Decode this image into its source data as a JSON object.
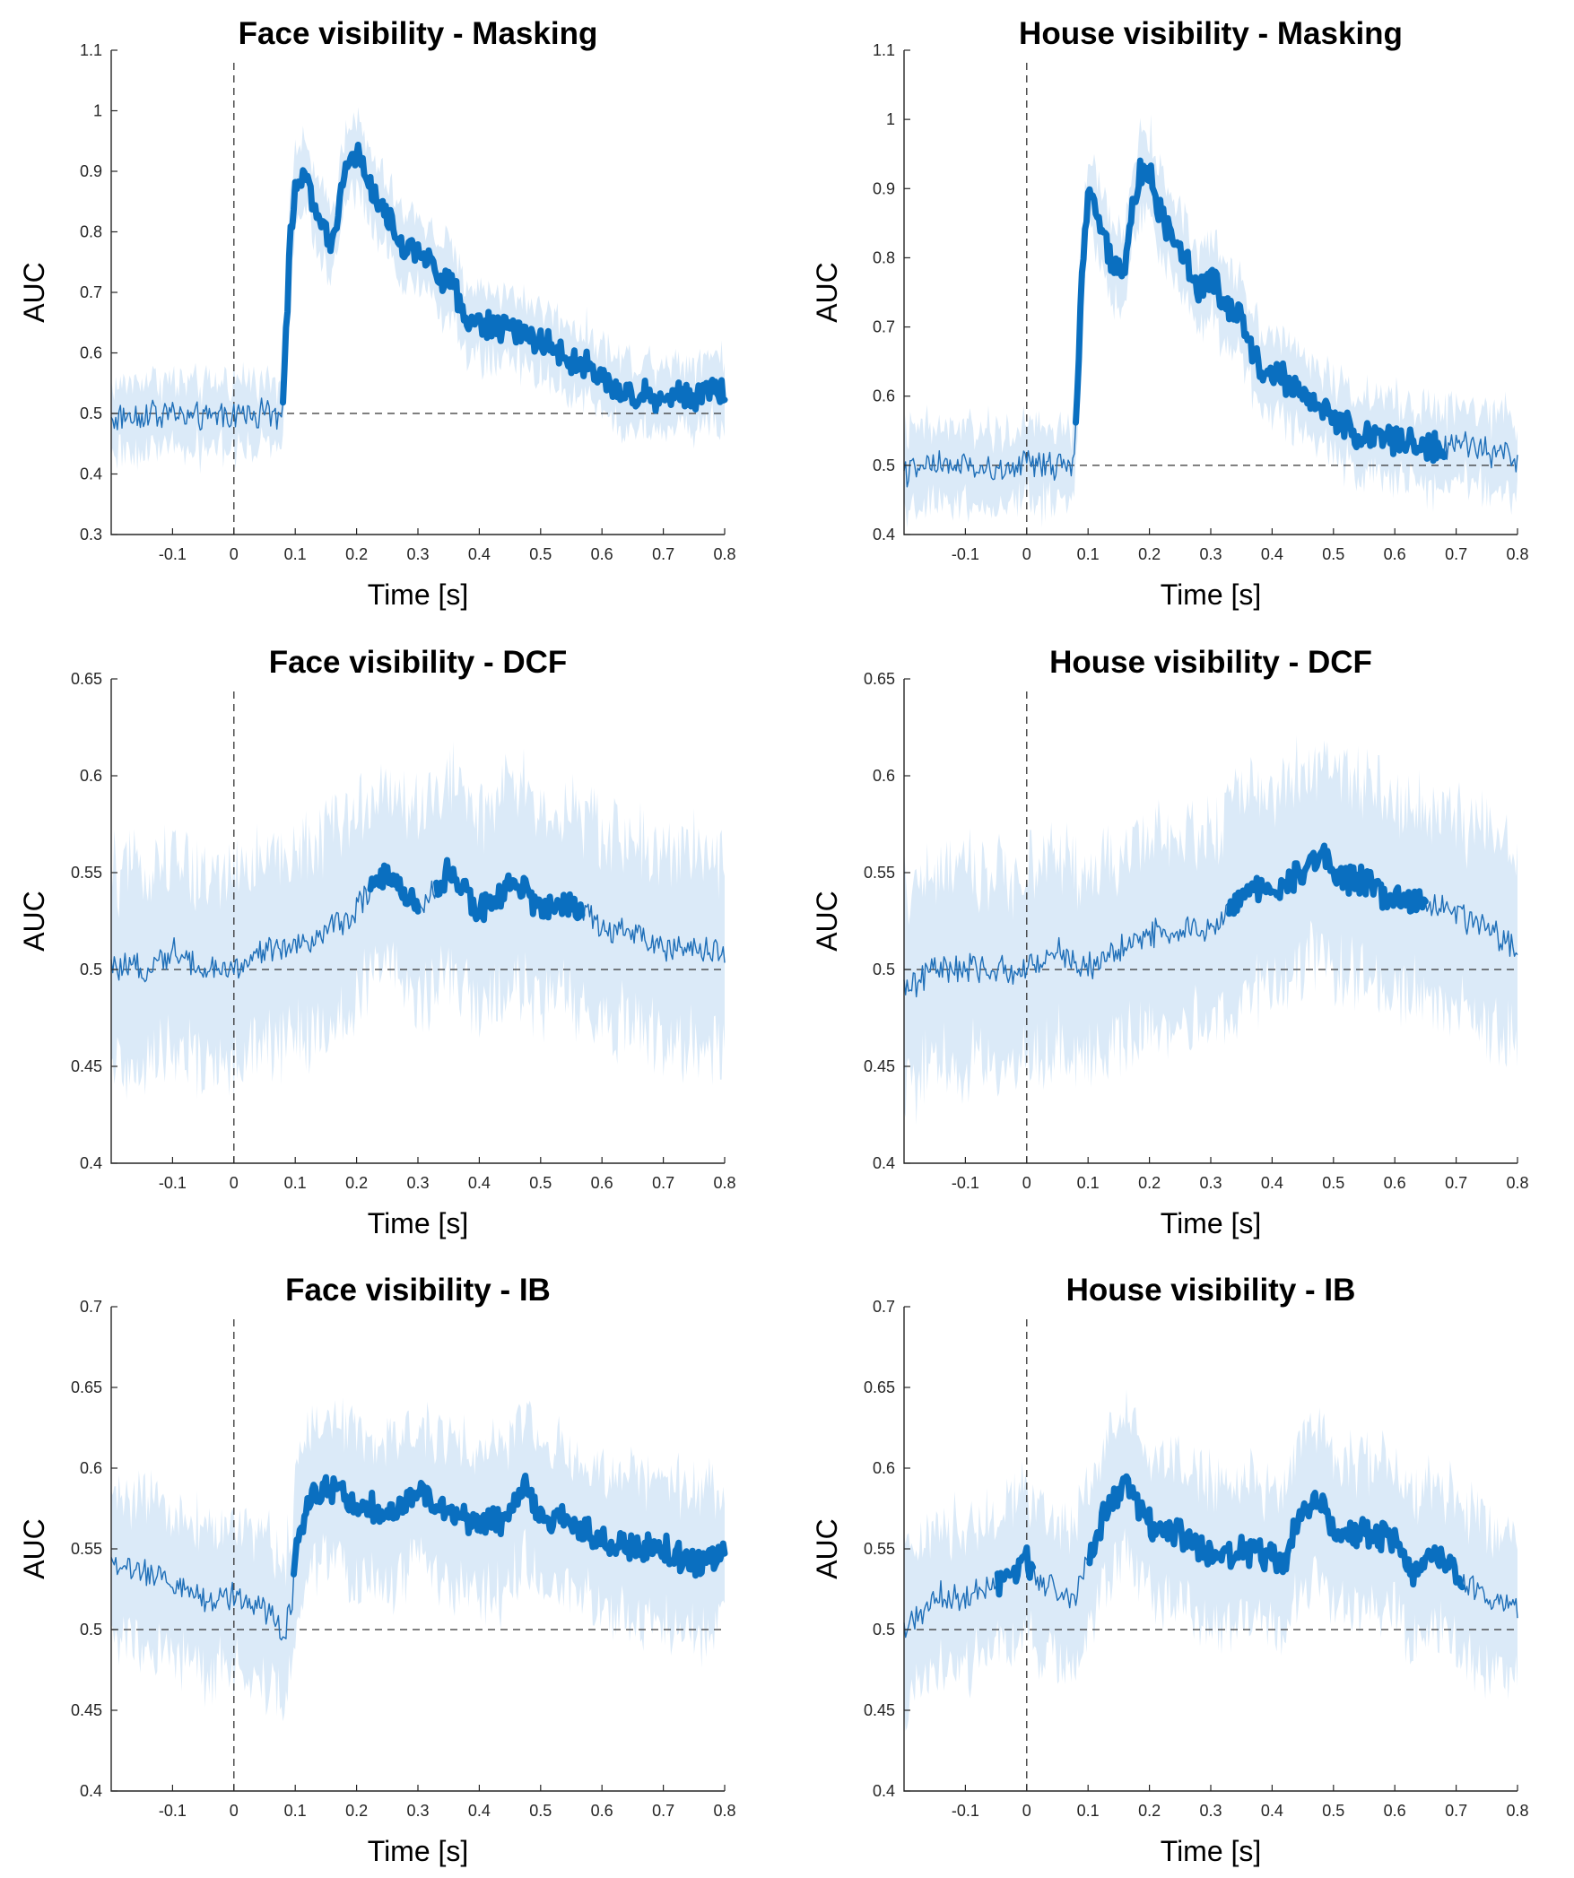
{
  "chart_data": [
    {
      "type": "line",
      "title": "Face visibility - Masking",
      "xlabel": "Time [s]",
      "ylabel": "AUC",
      "xlim": [
        -0.2,
        0.8
      ],
      "ylim": [
        0.3,
        1.1
      ],
      "xticks": [
        "-0.1",
        "0",
        "0.1",
        "0.2",
        "0.3",
        "0.4",
        "0.5",
        "0.6",
        "0.7",
        "0.8"
      ],
      "yticks": [
        "0.3",
        "0.4",
        "0.5",
        "0.6",
        "0.7",
        "0.8",
        "0.9",
        "1",
        "1.1"
      ],
      "chance": 0.5,
      "onset": 0,
      "significant_ranges": [
        [
          0.08,
          0.8
        ]
      ],
      "band_halfwidth": 0.05,
      "series": [
        {
          "x": [
            -0.2,
            -0.15,
            -0.1,
            -0.05,
            0,
            0.05,
            0.075,
            0.08,
            0.09,
            0.1,
            0.12,
            0.14,
            0.16,
            0.18,
            0.19,
            0.2,
            0.22,
            0.25,
            0.28,
            0.3,
            0.33,
            0.35,
            0.38,
            0.4,
            0.45,
            0.5,
            0.55,
            0.6,
            0.62,
            0.65,
            0.7,
            0.75,
            0.78,
            0.8
          ],
          "values": [
            0.49,
            0.5,
            0.5,
            0.49,
            0.5,
            0.5,
            0.5,
            0.53,
            0.75,
            0.89,
            0.88,
            0.81,
            0.78,
            0.9,
            0.94,
            0.93,
            0.88,
            0.82,
            0.77,
            0.78,
            0.73,
            0.72,
            0.66,
            0.65,
            0.64,
            0.62,
            0.59,
            0.56,
            0.54,
            0.53,
            0.53,
            0.53,
            0.55,
            0.53
          ]
        }
      ]
    },
    {
      "type": "line",
      "title": "House visibility - Masking",
      "xlabel": "Time [s]",
      "ylabel": "AUC",
      "xlim": [
        -0.2,
        0.8
      ],
      "ylim": [
        0.4,
        1.1
      ],
      "xticks": [
        "-0.1",
        "0",
        "0.1",
        "0.2",
        "0.3",
        "0.4",
        "0.5",
        "0.6",
        "0.7",
        "0.8"
      ],
      "yticks": [
        "0.4",
        "0.5",
        "0.6",
        "0.7",
        "0.8",
        "0.9",
        "1",
        "1.1"
      ],
      "chance": 0.5,
      "onset": 0,
      "significant_ranges": [
        [
          0.08,
          0.68
        ]
      ],
      "band_halfwidth": 0.05,
      "series": [
        {
          "x": [
            -0.2,
            -0.15,
            -0.1,
            -0.05,
            0,
            0.05,
            0.075,
            0.08,
            0.09,
            0.1,
            0.12,
            0.14,
            0.16,
            0.18,
            0.19,
            0.2,
            0.22,
            0.25,
            0.28,
            0.3,
            0.33,
            0.35,
            0.38,
            0.4,
            0.45,
            0.5,
            0.55,
            0.6,
            0.65,
            0.68,
            0.7,
            0.75,
            0.8
          ],
          "values": [
            0.49,
            0.5,
            0.5,
            0.49,
            0.5,
            0.5,
            0.5,
            0.55,
            0.78,
            0.89,
            0.85,
            0.78,
            0.79,
            0.91,
            0.93,
            0.92,
            0.86,
            0.82,
            0.75,
            0.77,
            0.73,
            0.72,
            0.64,
            0.64,
            0.6,
            0.57,
            0.54,
            0.54,
            0.53,
            0.52,
            0.53,
            0.52,
            0.51
          ]
        }
      ]
    },
    {
      "type": "line",
      "title": "Face visibility - DCF",
      "xlabel": "Time [s]",
      "ylabel": "AUC",
      "xlim": [
        -0.2,
        0.8
      ],
      "ylim": [
        0.4,
        0.65
      ],
      "xticks": [
        "-0.1",
        "0",
        "0.1",
        "0.2",
        "0.3",
        "0.4",
        "0.5",
        "0.6",
        "0.7",
        "0.8"
      ],
      "yticks": [
        "0.4",
        "0.45",
        "0.5",
        "0.55",
        "0.6",
        "0.65"
      ],
      "chance": 0.5,
      "onset": 0,
      "significant_ranges": [
        [
          0.22,
          0.3
        ],
        [
          0.33,
          0.57
        ]
      ],
      "band_halfwidth": 0.045,
      "series": [
        {
          "x": [
            -0.2,
            -0.15,
            -0.1,
            -0.05,
            0,
            0.05,
            0.1,
            0.15,
            0.2,
            0.22,
            0.25,
            0.28,
            0.3,
            0.33,
            0.35,
            0.38,
            0.4,
            0.43,
            0.45,
            0.48,
            0.5,
            0.53,
            0.57,
            0.6,
            0.65,
            0.7,
            0.75,
            0.8
          ],
          "values": [
            0.5,
            0.5,
            0.51,
            0.5,
            0.5,
            0.51,
            0.51,
            0.52,
            0.53,
            0.54,
            0.55,
            0.54,
            0.53,
            0.54,
            0.55,
            0.54,
            0.53,
            0.535,
            0.545,
            0.54,
            0.53,
            0.535,
            0.53,
            0.52,
            0.52,
            0.51,
            0.51,
            0.51
          ]
        }
      ]
    },
    {
      "type": "line",
      "title": "House visibility - DCF",
      "xlabel": "Time [s]",
      "ylabel": "AUC",
      "xlim": [
        -0.2,
        0.8
      ],
      "ylim": [
        0.4,
        0.65
      ],
      "xticks": [
        "-0.1",
        "0",
        "0.1",
        "0.2",
        "0.3",
        "0.4",
        "0.5",
        "0.6",
        "0.7",
        "0.8"
      ],
      "yticks": [
        "0.4",
        "0.45",
        "0.5",
        "0.55",
        "0.6",
        "0.65"
      ],
      "chance": 0.5,
      "onset": 0,
      "significant_ranges": [
        [
          0.33,
          0.65
        ]
      ],
      "band_halfwidth": 0.045,
      "series": [
        {
          "x": [
            -0.2,
            -0.15,
            -0.1,
            -0.05,
            0,
            0.05,
            0.1,
            0.15,
            0.2,
            0.25,
            0.3,
            0.33,
            0.35,
            0.4,
            0.45,
            0.48,
            0.5,
            0.55,
            0.6,
            0.65,
            0.7,
            0.75,
            0.8
          ],
          "values": [
            0.49,
            0.5,
            0.5,
            0.5,
            0.5,
            0.51,
            0.5,
            0.51,
            0.52,
            0.52,
            0.52,
            0.53,
            0.54,
            0.54,
            0.55,
            0.56,
            0.55,
            0.545,
            0.535,
            0.535,
            0.53,
            0.52,
            0.51
          ]
        }
      ]
    },
    {
      "type": "line",
      "title": "Face visibility - IB",
      "xlabel": "Time [s]",
      "ylabel": "AUC",
      "xlim": [
        -0.2,
        0.8
      ],
      "ylim": [
        0.4,
        0.7
      ],
      "xticks": [
        "-0.1",
        "0",
        "0.1",
        "0.2",
        "0.3",
        "0.4",
        "0.5",
        "0.6",
        "0.7",
        "0.8"
      ],
      "yticks": [
        "0.4",
        "0.45",
        "0.5",
        "0.55",
        "0.6",
        "0.65",
        "0.7"
      ],
      "chance": 0.5,
      "onset": 0,
      "significant_ranges": [
        [
          0.095,
          0.8
        ]
      ],
      "band_halfwidth": 0.04,
      "series": [
        {
          "x": [
            -0.2,
            -0.15,
            -0.1,
            -0.05,
            0,
            0.03,
            0.06,
            0.08,
            0.095,
            0.1,
            0.12,
            0.15,
            0.2,
            0.25,
            0.3,
            0.35,
            0.4,
            0.45,
            0.47,
            0.5,
            0.55,
            0.6,
            0.65,
            0.7,
            0.75,
            0.78,
            0.8
          ],
          "values": [
            0.54,
            0.535,
            0.53,
            0.52,
            0.52,
            0.52,
            0.51,
            0.495,
            0.52,
            0.55,
            0.58,
            0.59,
            0.58,
            0.57,
            0.585,
            0.575,
            0.565,
            0.57,
            0.59,
            0.57,
            0.565,
            0.555,
            0.55,
            0.55,
            0.54,
            0.545,
            0.545
          ]
        }
      ]
    },
    {
      "type": "line",
      "title": "House visibility - IB",
      "xlabel": "Time [s]",
      "ylabel": "AUC",
      "xlim": [
        -0.2,
        0.8
      ],
      "ylim": [
        0.4,
        0.7
      ],
      "xticks": [
        "-0.1",
        "0",
        "0.1",
        "0.2",
        "0.3",
        "0.4",
        "0.5",
        "0.6",
        "0.7",
        "0.8"
      ],
      "yticks": [
        "0.4",
        "0.45",
        "0.5",
        "0.55",
        "0.6",
        "0.65",
        "0.7"
      ],
      "chance": 0.5,
      "onset": 0,
      "significant_ranges": [
        [
          -0.05,
          0.01
        ],
        [
          0.1,
          0.71
        ]
      ],
      "band_halfwidth": 0.04,
      "series": [
        {
          "x": [
            -0.2,
            -0.15,
            -0.1,
            -0.05,
            -0.02,
            0,
            0.02,
            0.05,
            0.08,
            0.1,
            0.13,
            0.16,
            0.2,
            0.25,
            0.3,
            0.35,
            0.4,
            0.42,
            0.45,
            0.48,
            0.5,
            0.55,
            0.6,
            0.63,
            0.68,
            0.71,
            0.75,
            0.8
          ],
          "values": [
            0.5,
            0.52,
            0.52,
            0.53,
            0.535,
            0.545,
            0.53,
            0.525,
            0.52,
            0.545,
            0.575,
            0.59,
            0.565,
            0.56,
            0.545,
            0.55,
            0.545,
            0.54,
            0.575,
            0.58,
            0.56,
            0.56,
            0.555,
            0.535,
            0.545,
            0.53,
            0.52,
            0.515
          ]
        }
      ]
    }
  ]
}
